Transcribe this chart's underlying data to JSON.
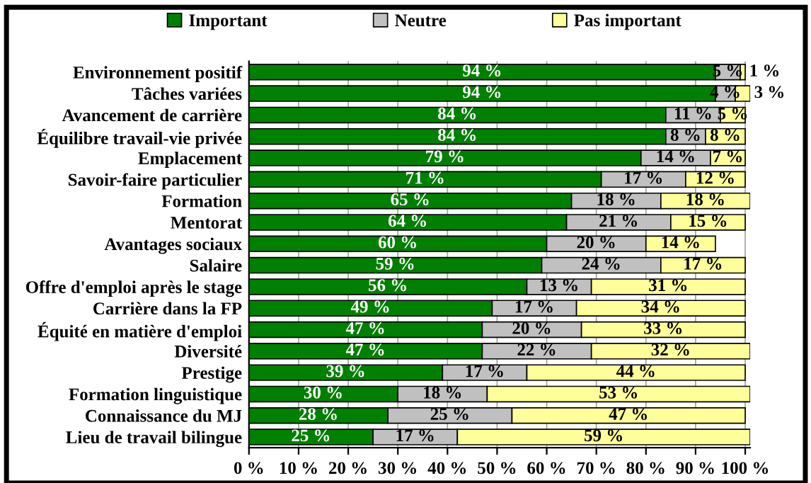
{
  "chart_data": {
    "type": "bar",
    "orientation": "horizontal",
    "stacked": true,
    "categories": [
      "Environnement positif",
      "Tâches variées",
      "Avancement de carrière",
      "Équilibre travail-vie privée",
      "Emplacement",
      "Savoir-faire particulier",
      "Formation",
      "Mentorat",
      "Avantages sociaux",
      "Salaire",
      "Offre d'emploi après le stage",
      "Carrière dans la FP",
      "Équité en matière d'emploi",
      "Diversité",
      "Prestige",
      "Formation linguistique",
      "Connaissance du MJ",
      "Lieu de travail bilingue"
    ],
    "series": [
      {
        "name": "Important",
        "color": "#008000",
        "values": [
          94,
          94,
          84,
          84,
          79,
          71,
          65,
          64,
          60,
          59,
          56,
          49,
          47,
          47,
          39,
          30,
          28,
          25
        ],
        "value_labels": [
          "94 %",
          "94 %",
          "84 %",
          "84 %",
          "79 %",
          "71 %",
          "65 %",
          "64 %",
          "60 %",
          "59 %",
          "56 %",
          "49 %",
          "47 %",
          "47 %",
          "39 %",
          "30 %",
          "28 %",
          "25 %"
        ]
      },
      {
        "name": "Neutre",
        "color": "#c0c0c0",
        "values": [
          5,
          4,
          11,
          8,
          14,
          17,
          18,
          21,
          20,
          24,
          13,
          17,
          20,
          22,
          17,
          18,
          25,
          17
        ],
        "value_labels": [
          "5 %",
          "4 %",
          "11 %",
          "8 %",
          "14 %",
          "17 %",
          "18 %",
          "21 %",
          "20 %",
          "24 %",
          "13 %",
          "17 %",
          "20 %",
          "22 %",
          "17 %",
          "18 %",
          "25 %",
          "17 %"
        ]
      },
      {
        "name": "Pas important",
        "color": "#ffff99",
        "values": [
          1,
          3,
          5,
          8,
          7,
          12,
          18,
          15,
          14,
          17,
          31,
          34,
          33,
          32,
          44,
          53,
          47,
          59
        ],
        "value_labels": [
          "1 %",
          "3 %",
          "5 %",
          "8 %",
          "7 %",
          "12 %",
          "18 %",
          "15 %",
          "14 %",
          "17 %",
          "31 %",
          "34 %",
          "33 %",
          "32 %",
          "44 %",
          "53 %",
          "47 %",
          "59 %"
        ]
      }
    ],
    "xlim": [
      0,
      101
    ],
    "xticks": [
      {
        "value": 0,
        "label": "0 %"
      },
      {
        "value": 10,
        "label": "10 %"
      },
      {
        "value": 20,
        "label": "20 %"
      },
      {
        "value": 30,
        "label": "30 %"
      },
      {
        "value": 40,
        "label": "40 %"
      },
      {
        "value": 50,
        "label": "50 %"
      },
      {
        "value": 60,
        "label": "60 %"
      },
      {
        "value": 70,
        "label": "70 %"
      },
      {
        "value": 80,
        "label": "80 %"
      },
      {
        "value": 90,
        "label": "90 %"
      },
      {
        "value": 100,
        "label": "100 %"
      }
    ],
    "grid": "x",
    "legend": "top"
  }
}
